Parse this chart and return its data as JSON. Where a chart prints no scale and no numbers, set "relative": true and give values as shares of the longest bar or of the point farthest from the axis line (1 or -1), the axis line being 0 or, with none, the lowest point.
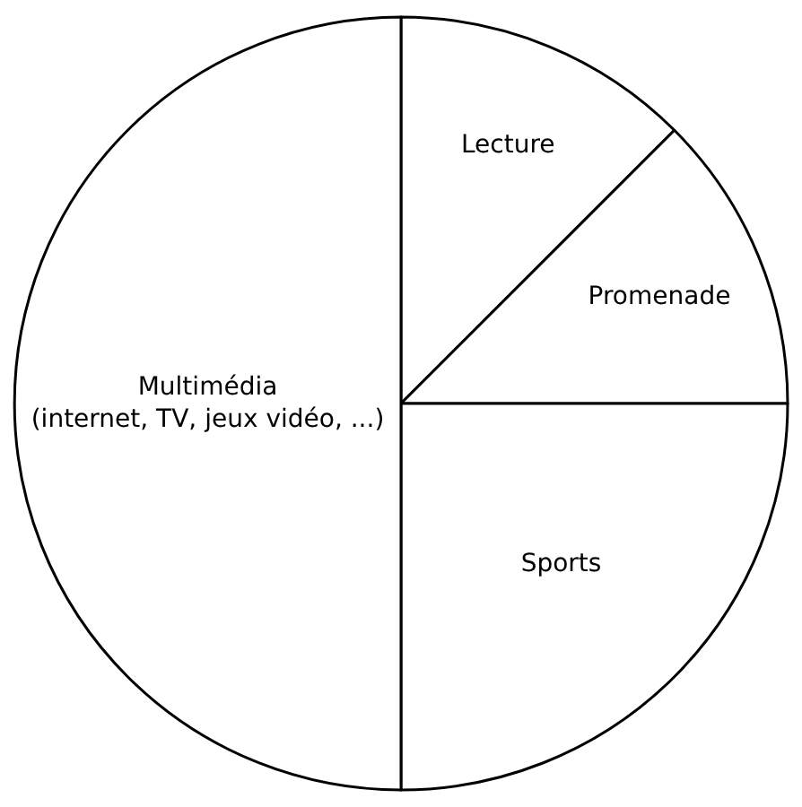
{
  "chart_data": {
    "type": "pie",
    "relative": true,
    "categories": [
      "Lecture",
      "Promenade",
      "Sports",
      "Multimédia\n(internet, TV, jeux vidéo, ...)"
    ],
    "values": [
      12.5,
      12.5,
      25,
      50
    ],
    "colors": [
      "#ffffff",
      "#ffffff",
      "#ffffff",
      "#ffffff"
    ],
    "legend": false
  }
}
